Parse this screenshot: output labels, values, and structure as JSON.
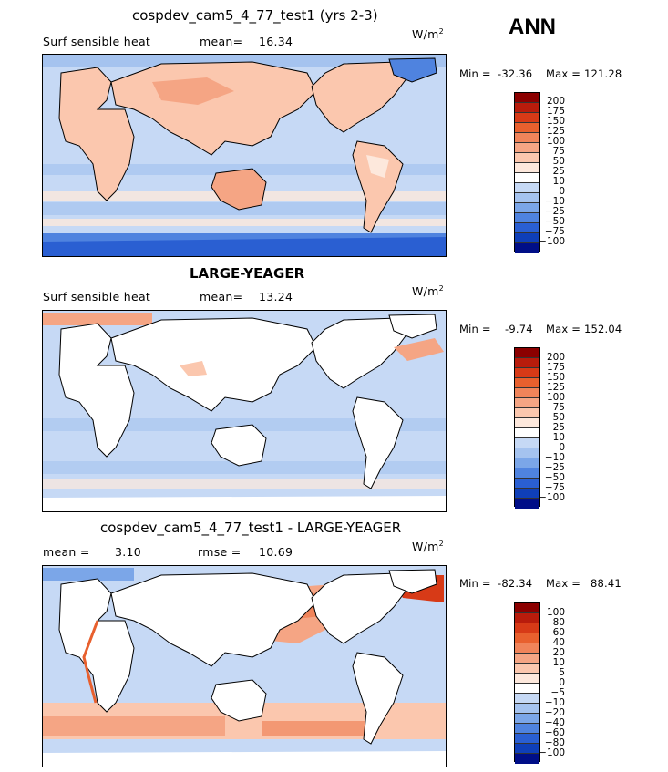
{
  "season": "ANN",
  "panels": [
    {
      "id": "model",
      "title": "cospdev_cam5_4_77_test1 (yrs 2-3)",
      "variable": "Surf sensible heat",
      "stat_label": "mean=",
      "stat_value": "16.34",
      "units": "W/m",
      "units_exp": "2",
      "min_label": "Min =",
      "min_value": "-32.36",
      "max_label": "Max =",
      "max_value": "121.28",
      "colorbar_labels": [
        "200",
        "175",
        "150",
        "125",
        "100",
        "75",
        "50",
        "25",
        "10",
        "0",
        "−10",
        "−25",
        "−50",
        "−75",
        "−100"
      ]
    },
    {
      "id": "obs",
      "title": "LARGE-YEAGER",
      "variable": "Surf sensible heat",
      "stat_label": "mean=",
      "stat_value": "13.24",
      "units": "W/m",
      "units_exp": "2",
      "min_label": "Min =",
      "min_value": "-9.74",
      "max_label": "Max =",
      "max_value": "152.04",
      "colorbar_labels": [
        "200",
        "175",
        "150",
        "125",
        "100",
        "75",
        "50",
        "25",
        "10",
        "0",
        "−10",
        "−25",
        "−50",
        "−75",
        "−100"
      ]
    },
    {
      "id": "diff",
      "title": "cospdev_cam5_4_77_test1 - LARGE-YEAGER",
      "stat_label": "mean =",
      "stat_value": "3.10",
      "rmse_label": "rmse =",
      "rmse_value": "10.69",
      "units": "W/m",
      "units_exp": "2",
      "min_label": "Min =",
      "min_value": "-82.34",
      "max_label": "Max =",
      "max_value": "88.41",
      "colorbar_labels": [
        "100",
        "80",
        "60",
        "40",
        "20",
        "10",
        "5",
        "0",
        "−5",
        "−10",
        "−20",
        "−40",
        "−60",
        "−80",
        "−100"
      ]
    }
  ],
  "colors": {
    "scale": [
      "#8b0000",
      "#b81c0c",
      "#d73a17",
      "#e8602e",
      "#f0845a",
      "#f5a584",
      "#fbc7ae",
      "#fde8dc",
      "#ffffff",
      "#c6d9f5",
      "#a5c3ef",
      "#7ba6e8",
      "#4f83df",
      "#2a5fd2",
      "#0f3fb8",
      "#000e87"
    ],
    "land_panel2": "#ffffff",
    "coast": "#000000"
  }
}
